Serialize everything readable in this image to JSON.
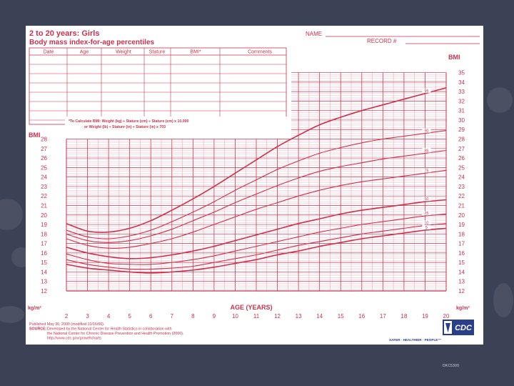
{
  "header": {
    "title_line1": "2 to 20 years: Girls",
    "title_line2": "Body mass index-for-age percentiles",
    "name_label": "NAME",
    "record_label": "RECORD #"
  },
  "table": {
    "columns": [
      "Date",
      "Age",
      "Weight",
      "Stature",
      "BMI*",
      "Comments"
    ]
  },
  "formula": {
    "line1": "*To Calculate BMI: Weight (kg) ÷ Stature (cm) ÷ Stature (cm) x 10,000",
    "line2": "or Weight (lb) ÷ Stature (in) ÷ Stature (in) x 703"
  },
  "footer": {
    "published": "Published May 30, 2000 (modified 10/16/00).",
    "source_label": "SOURCE:",
    "source_line1": "Developed by the National Center for Health Statistics in collaboration with",
    "source_line2": "the National Center for Chronic Disease Prevention and Health Promotion (2000).",
    "url": "http://www.cdc.gov/growthcharts",
    "logo_text": "CDC",
    "tagline": "SAFER · HEALTHIER · PEOPLE™"
  },
  "slide_tag": "DKC5300",
  "colors": {
    "ink": "#c8324e",
    "grid": "#e58da0",
    "background": "#3c4256",
    "paper": "#ffffff"
  },
  "chart_data": {
    "type": "line",
    "xlabel": "AGE (YEARS)",
    "ylabel": "BMI",
    "unit_label": "kg/m²",
    "x_ticks": [
      2,
      3,
      4,
      5,
      6,
      7,
      8,
      9,
      10,
      11,
      12,
      13,
      14,
      15,
      16,
      17,
      18,
      19,
      20
    ],
    "y_ticks_lower": [
      12,
      13,
      14,
      15,
      16,
      17,
      18,
      19,
      20,
      21,
      22,
      23,
      24,
      25,
      26,
      27,
      28
    ],
    "y_ticks_right": [
      12,
      13,
      14,
      15,
      16,
      17,
      18,
      19,
      20,
      21,
      22,
      23,
      24,
      25,
      26,
      27,
      28,
      29,
      30,
      31,
      32,
      33,
      34,
      35
    ],
    "xlim": [
      2,
      20
    ],
    "ylim": [
      12,
      35
    ],
    "grid": true,
    "x": [
      2,
      3,
      4,
      5,
      6,
      7,
      8,
      9,
      10,
      11,
      12,
      13,
      14,
      15,
      16,
      17,
      18,
      19,
      20
    ],
    "series": [
      {
        "name": "95",
        "values": [
          19.1,
          18.3,
          18.2,
          18.6,
          19.4,
          20.5,
          21.7,
          23.0,
          24.4,
          25.8,
          27.2,
          28.4,
          29.5,
          30.3,
          31.0,
          31.6,
          32.2,
          32.8,
          33.4
        ]
      },
      {
        "name": "90",
        "values": [
          18.4,
          17.7,
          17.5,
          17.8,
          18.4,
          19.3,
          20.3,
          21.4,
          22.6,
          23.7,
          24.8,
          25.7,
          26.5,
          27.1,
          27.6,
          28.0,
          28.3,
          28.6,
          28.9
        ]
      },
      {
        "name": "85",
        "values": [
          18.0,
          17.3,
          17.1,
          17.3,
          17.8,
          18.5,
          19.4,
          20.3,
          21.3,
          22.2,
          23.1,
          23.9,
          24.6,
          25.1,
          25.5,
          25.9,
          26.2,
          26.5,
          26.8
        ]
      },
      {
        "name": "75",
        "values": [
          17.5,
          16.8,
          16.5,
          16.6,
          17.0,
          17.5,
          18.2,
          19.0,
          19.8,
          20.6,
          21.3,
          22.0,
          22.6,
          23.1,
          23.5,
          23.8,
          24.1,
          24.4,
          24.7
        ]
      },
      {
        "name": "50",
        "values": [
          16.6,
          16.0,
          15.6,
          15.4,
          15.5,
          15.8,
          16.2,
          16.7,
          17.3,
          17.9,
          18.5,
          19.1,
          19.6,
          20.1,
          20.5,
          20.8,
          21.1,
          21.4,
          21.6
        ]
      },
      {
        "name": "25",
        "values": [
          15.9,
          15.3,
          14.9,
          14.8,
          14.8,
          15.0,
          15.3,
          15.7,
          16.2,
          16.7,
          17.2,
          17.7,
          18.2,
          18.6,
          19.0,
          19.3,
          19.6,
          19.9,
          20.1
        ]
      },
      {
        "name": "10",
        "values": [
          15.3,
          14.8,
          14.5,
          14.3,
          14.3,
          14.4,
          14.6,
          15.0,
          15.4,
          15.8,
          16.3,
          16.8,
          17.2,
          17.6,
          18.0,
          18.3,
          18.6,
          18.9,
          19.1
        ]
      },
      {
        "name": "5",
        "values": [
          14.8,
          14.4,
          14.2,
          14.0,
          13.9,
          14.0,
          14.2,
          14.5,
          14.9,
          15.3,
          15.8,
          16.2,
          16.7,
          17.1,
          17.5,
          17.8,
          18.1,
          18.4,
          18.6
        ]
      }
    ]
  }
}
